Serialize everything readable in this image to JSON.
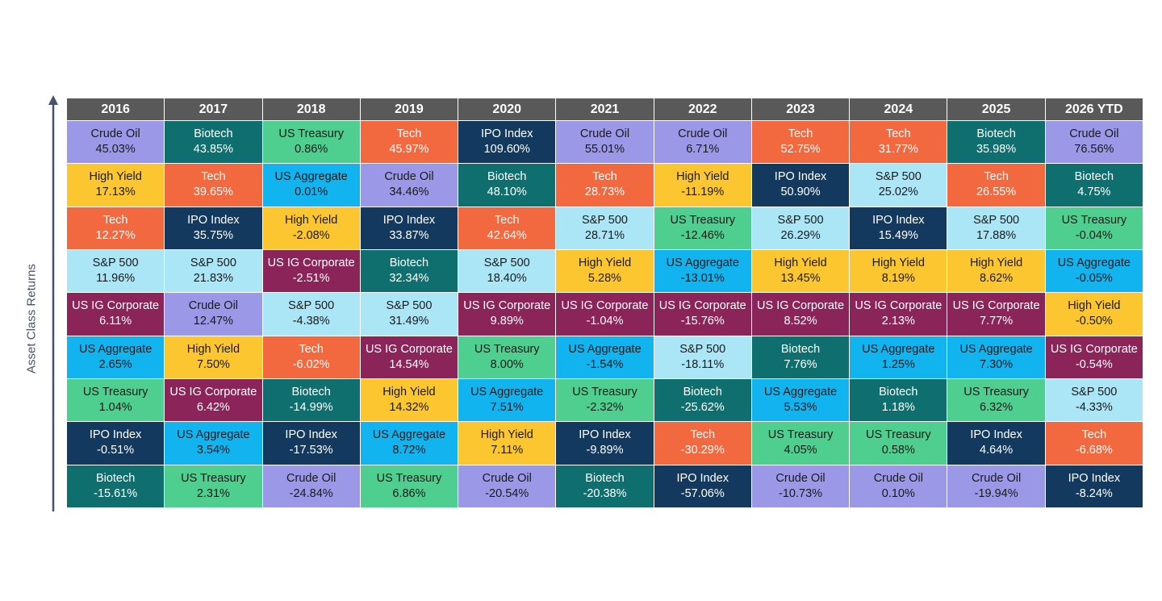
{
  "y_axis_label": "Asset Class Returns",
  "assets": {
    "Crude Oil": {
      "bg": "#9b98e8",
      "fg": "#1a1a1a"
    },
    "Biotech": {
      "bg": "#0f6f6e",
      "fg": "#ffffff"
    },
    "US Treasury": {
      "bg": "#4fcf8f",
      "fg": "#1a1a1a"
    },
    "Tech": {
      "bg": "#f2683f",
      "fg": "#ffffff"
    },
    "IPO Index": {
      "bg": "#133a5e",
      "fg": "#ffffff"
    },
    "High Yield": {
      "bg": "#fcc630",
      "fg": "#1a1a1a"
    },
    "US Aggregate": {
      "bg": "#11b4ef",
      "fg": "#1a1a1a"
    },
    "S&P 500": {
      "bg": "#abe6f7",
      "fg": "#1a1a1a"
    },
    "US IG Corporate": {
      "bg": "#8b2459",
      "fg": "#ffffff"
    }
  },
  "chart_data": {
    "type": "table",
    "columns": [
      "2016",
      "2017",
      "2018",
      "2019",
      "2020",
      "2021",
      "2022",
      "2023",
      "2024",
      "2025",
      "2026 YTD"
    ],
    "rows": [
      [
        [
          "Crude Oil",
          "45.03%"
        ],
        [
          "Biotech",
          "43.85%"
        ],
        [
          "US Treasury",
          "0.86%"
        ],
        [
          "Tech",
          "45.97%"
        ],
        [
          "IPO Index",
          "109.60%"
        ],
        [
          "Crude Oil",
          "55.01%"
        ],
        [
          "Crude Oil",
          "6.71%"
        ],
        [
          "Tech",
          "52.75%"
        ],
        [
          "Tech",
          "31.77%"
        ],
        [
          "Biotech",
          "35.98%"
        ],
        [
          "Crude Oil",
          "76.56%"
        ]
      ],
      [
        [
          "High Yield",
          "17.13%"
        ],
        [
          "Tech",
          "39.65%"
        ],
        [
          "US Aggregate",
          "0.01%"
        ],
        [
          "Crude Oil",
          "34.46%"
        ],
        [
          "Biotech",
          "48.10%"
        ],
        [
          "Tech",
          "28.73%"
        ],
        [
          "High Yield",
          "-11.19%"
        ],
        [
          "IPO Index",
          "50.90%"
        ],
        [
          "S&P 500",
          "25.02%"
        ],
        [
          "Tech",
          "26.55%"
        ],
        [
          "Biotech",
          "4.75%"
        ]
      ],
      [
        [
          "Tech",
          "12.27%"
        ],
        [
          "IPO Index",
          "35.75%"
        ],
        [
          "High Yield",
          "-2.08%"
        ],
        [
          "IPO Index",
          "33.87%"
        ],
        [
          "Tech",
          "42.64%"
        ],
        [
          "S&P 500",
          "28.71%"
        ],
        [
          "US Treasury",
          "-12.46%"
        ],
        [
          "S&P 500",
          "26.29%"
        ],
        [
          "IPO Index",
          "15.49%"
        ],
        [
          "S&P 500",
          "17.88%"
        ],
        [
          "US Treasury",
          "-0.04%"
        ]
      ],
      [
        [
          "S&P 500",
          "11.96%"
        ],
        [
          "S&P 500",
          "21.83%"
        ],
        [
          "US IG Corporate",
          "-2.51%"
        ],
        [
          "Biotech",
          "32.34%"
        ],
        [
          "S&P 500",
          "18.40%"
        ],
        [
          "High Yield",
          "5.28%"
        ],
        [
          "US Aggregate",
          "-13.01%"
        ],
        [
          "High Yield",
          "13.45%"
        ],
        [
          "High Yield",
          "8.19%"
        ],
        [
          "High Yield",
          "8.62%"
        ],
        [
          "US Aggregate",
          "-0.05%"
        ]
      ],
      [
        [
          "US IG Corporate",
          "6.11%"
        ],
        [
          "Crude Oil",
          "12.47%"
        ],
        [
          "S&P 500",
          "-4.38%"
        ],
        [
          "S&P 500",
          "31.49%"
        ],
        [
          "US IG Corporate",
          "9.89%"
        ],
        [
          "US IG Corporate",
          "-1.04%"
        ],
        [
          "US IG Corporate",
          "-15.76%"
        ],
        [
          "US IG Corporate",
          "8.52%"
        ],
        [
          "US IG Corporate",
          "2.13%"
        ],
        [
          "US IG Corporate",
          "7.77%"
        ],
        [
          "High Yield",
          "-0.50%"
        ]
      ],
      [
        [
          "US Aggregate",
          "2.65%"
        ],
        [
          "High Yield",
          "7.50%"
        ],
        [
          "Tech",
          "-6.02%"
        ],
        [
          "US IG Corporate",
          "14.54%"
        ],
        [
          "US Treasury",
          "8.00%"
        ],
        [
          "US Aggregate",
          "-1.54%"
        ],
        [
          "S&P 500",
          "-18.11%"
        ],
        [
          "Biotech",
          "7.76%"
        ],
        [
          "US Aggregate",
          "1.25%"
        ],
        [
          "US Aggregate",
          "7.30%"
        ],
        [
          "US IG Corporate",
          "-0.54%"
        ]
      ],
      [
        [
          "US Treasury",
          "1.04%"
        ],
        [
          "US IG Corporate",
          "6.42%"
        ],
        [
          "Biotech",
          "-14.99%"
        ],
        [
          "High Yield",
          "14.32%"
        ],
        [
          "US Aggregate",
          "7.51%"
        ],
        [
          "US Treasury",
          "-2.32%"
        ],
        [
          "Biotech",
          "-25.62%"
        ],
        [
          "US Aggregate",
          "5.53%"
        ],
        [
          "Biotech",
          "1.18%"
        ],
        [
          "US Treasury",
          "6.32%"
        ],
        [
          "S&P 500",
          "-4.33%"
        ]
      ],
      [
        [
          "IPO Index",
          "-0.51%"
        ],
        [
          "US Aggregate",
          "3.54%"
        ],
        [
          "IPO Index",
          "-17.53%"
        ],
        [
          "US Aggregate",
          "8.72%"
        ],
        [
          "High Yield",
          "7.11%"
        ],
        [
          "IPO Index",
          "-9.89%"
        ],
        [
          "Tech",
          "-30.29%"
        ],
        [
          "US Treasury",
          "4.05%"
        ],
        [
          "US Treasury",
          "0.58%"
        ],
        [
          "IPO Index",
          "4.64%"
        ],
        [
          "Tech",
          "-6.68%"
        ]
      ],
      [
        [
          "Biotech",
          "-15.61%"
        ],
        [
          "US Treasury",
          "2.31%"
        ],
        [
          "Crude Oil",
          "-24.84%"
        ],
        [
          "US Treasury",
          "6.86%"
        ],
        [
          "Crude Oil",
          "-20.54%"
        ],
        [
          "Biotech",
          "-20.38%"
        ],
        [
          "IPO Index",
          "-57.06%"
        ],
        [
          "Crude Oil",
          "-10.73%"
        ],
        [
          "Crude Oil",
          "0.10%"
        ],
        [
          "Crude Oil",
          "-19.94%"
        ],
        [
          "IPO Index",
          "-8.24%"
        ]
      ]
    ]
  }
}
